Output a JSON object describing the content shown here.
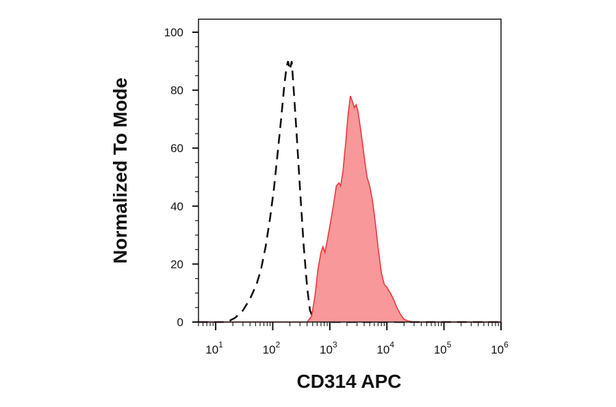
{
  "chart_data": {
    "type": "area",
    "xlabel": "CD314 APC",
    "ylabel": "Normalized To Mode",
    "xscale": "log",
    "xlim": [
      5,
      1000000
    ],
    "ylim": [
      0,
      100
    ],
    "x_ticks": [
      {
        "base": "10",
        "exp": "1",
        "value": 10
      },
      {
        "base": "10",
        "exp": "2",
        "value": 100
      },
      {
        "base": "10",
        "exp": "3",
        "value": 1000
      },
      {
        "base": "10",
        "exp": "4",
        "value": 10000
      },
      {
        "base": "10",
        "exp": "5",
        "value": 100000
      },
      {
        "base": "10",
        "exp": "6",
        "value": 1000000
      }
    ],
    "y_ticks": [
      {
        "label": "0",
        "value": 0
      },
      {
        "label": "20",
        "value": 20
      },
      {
        "label": "40",
        "value": 40
      },
      {
        "label": "60",
        "value": 60
      },
      {
        "label": "80",
        "value": 80
      },
      {
        "label": "100",
        "value": 100
      }
    ],
    "grid": false,
    "series": [
      {
        "style": "dashed-line",
        "color": "#111111",
        "points": [
          [
            5,
            0
          ],
          [
            16,
            0
          ],
          [
            22,
            1.5
          ],
          [
            30,
            4
          ],
          [
            40,
            8
          ],
          [
            52,
            13
          ],
          [
            62,
            18
          ],
          [
            75,
            26
          ],
          [
            90,
            36
          ],
          [
            105,
            46
          ],
          [
            120,
            57
          ],
          [
            140,
            70
          ],
          [
            160,
            82
          ],
          [
            175,
            88
          ],
          [
            185,
            90
          ],
          [
            200,
            87
          ],
          [
            215,
            90
          ],
          [
            230,
            82
          ],
          [
            260,
            66
          ],
          [
            300,
            46
          ],
          [
            350,
            26
          ],
          [
            400,
            12
          ],
          [
            450,
            4
          ],
          [
            520,
            1
          ],
          [
            800,
            0
          ],
          [
            1000000,
            0
          ]
        ]
      },
      {
        "style": "filled-area",
        "color": "#e8363b",
        "fill": "#f8989a",
        "points": [
          [
            5,
            0
          ],
          [
            400,
            0
          ],
          [
            480,
            2
          ],
          [
            550,
            9
          ],
          [
            620,
            18
          ],
          [
            700,
            24
          ],
          [
            760,
            26
          ],
          [
            820,
            24
          ],
          [
            900,
            28
          ],
          [
            1000,
            33
          ],
          [
            1150,
            40
          ],
          [
            1300,
            47
          ],
          [
            1450,
            48
          ],
          [
            1550,
            47
          ],
          [
            1700,
            52
          ],
          [
            1900,
            62
          ],
          [
            2100,
            72
          ],
          [
            2300,
            78
          ],
          [
            2500,
            76
          ],
          [
            2700,
            74
          ],
          [
            2900,
            75
          ],
          [
            3100,
            73
          ],
          [
            3500,
            66
          ],
          [
            4000,
            57
          ],
          [
            4500,
            50
          ],
          [
            5000,
            47
          ],
          [
            5600,
            42
          ],
          [
            6300,
            34
          ],
          [
            7100,
            25
          ],
          [
            8000,
            17
          ],
          [
            9000,
            13
          ],
          [
            10000,
            12
          ],
          [
            11500,
            10
          ],
          [
            13000,
            8
          ],
          [
            15000,
            5
          ],
          [
            17500,
            2.5
          ],
          [
            20000,
            1
          ],
          [
            24000,
            0.3
          ],
          [
            30000,
            0
          ],
          [
            1000000,
            0
          ]
        ]
      }
    ]
  }
}
